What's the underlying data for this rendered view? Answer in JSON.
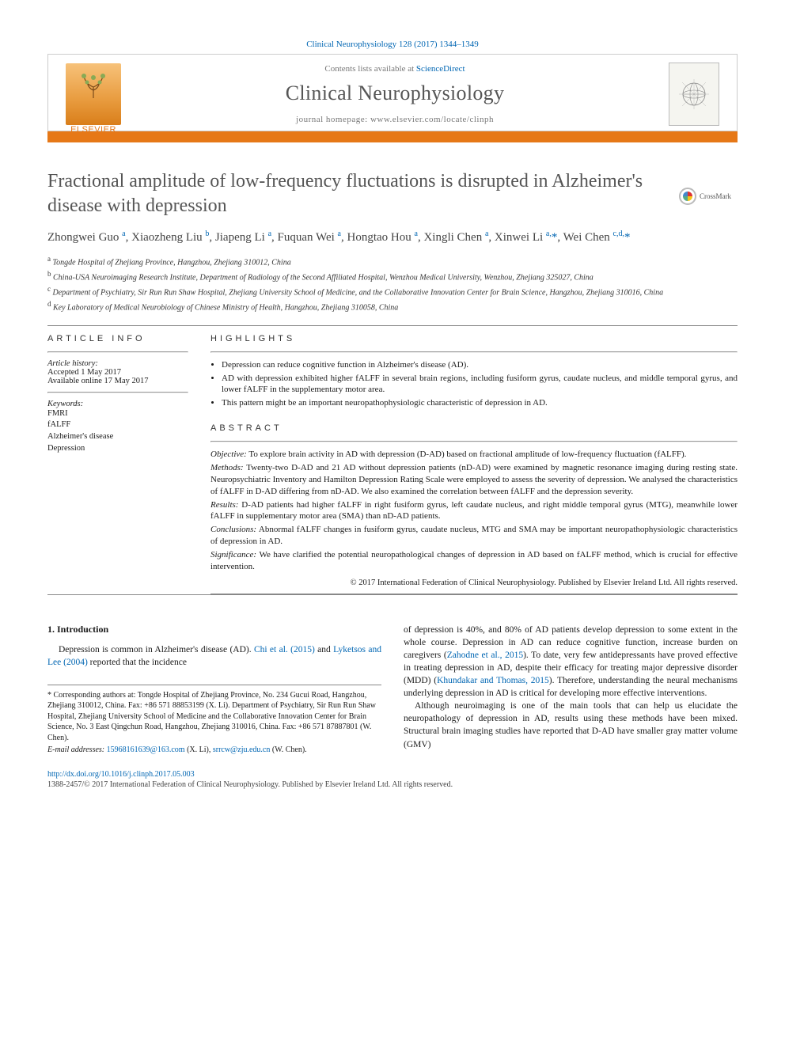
{
  "journal": {
    "ref_line": "Clinical Neurophysiology 128 (2017) 1344–1349",
    "contents_line_pre": "Contents lists available at ",
    "contents_line_link": "ScienceDirect",
    "name": "Clinical Neurophysiology",
    "homepage_pre": "journal homepage: ",
    "homepage_url": "www.elsevier.com/locate/clinph",
    "publisher_logo_label": "ELSEVIER",
    "accent_color": "#e67817",
    "link_color": "#0066b3"
  },
  "crossmark_label": "CrossMark",
  "article": {
    "title": "Fractional amplitude of low-frequency fluctuations is disrupted in Alzheimer's disease with depression",
    "authors_html": "Zhongwei Guo <sup>a</sup>, Xiaozheng Liu <sup>b</sup>, Jiapeng Li <sup>a</sup>, Fuquan Wei <sup>a</sup>, Hongtao Hou <sup>a</sup>, Xingli Chen <sup>a</sup>, Xinwei Li <sup>a,</sup><span class='star'>*</span>, Wei Chen <sup>c,d,</sup><span class='star'>*</span>",
    "affiliations": [
      {
        "sup": "a",
        "text": "Tongde Hospital of Zhejiang Province, Hangzhou, Zhejiang 310012, China"
      },
      {
        "sup": "b",
        "text": "China-USA Neuroimaging Research Institute, Department of Radiology of the Second Affiliated Hospital, Wenzhou Medical University, Wenzhou, Zhejiang 325027, China"
      },
      {
        "sup": "c",
        "text": "Department of Psychiatry, Sir Run Run Shaw Hospital, Zhejiang University School of Medicine, and the Collaborative Innovation Center for Brain Science, Hangzhou, Zhejiang 310016, China"
      },
      {
        "sup": "d",
        "text": "Key Laboratory of Medical Neurobiology of Chinese Ministry of Health, Hangzhou, Zhejiang 310058, China"
      }
    ]
  },
  "info": {
    "heading": "ARTICLE INFO",
    "history_label": "Article history:",
    "accepted": "Accepted 1 May 2017",
    "online": "Available online 17 May 2017",
    "keywords_label": "Keywords:",
    "keywords": [
      "FMRI",
      "fALFF",
      "Alzheimer's disease",
      "Depression"
    ]
  },
  "highlights": {
    "heading": "HIGHLIGHTS",
    "items": [
      "Depression can reduce cognitive function in Alzheimer's disease (AD).",
      "AD with depression exhibited higher fALFF in several brain regions, including fusiform gyrus, caudate nucleus, and middle temporal gyrus, and lower fALFF in the supplementary motor area.",
      "This pattern might be an important neuropathophysiologic characteristic of depression in AD."
    ]
  },
  "abstract": {
    "heading": "ABSTRACT",
    "objective_lbl": "Objective:",
    "objective": " To explore brain activity in AD with depression (D-AD) based on fractional amplitude of low-frequency fluctuation (fALFF).",
    "methods_lbl": "Methods:",
    "methods": " Twenty-two D-AD and 21 AD without depression patients (nD-AD) were examined by magnetic resonance imaging during resting state. Neuropsychiatric Inventory and Hamilton Depression Rating Scale were employed to assess the severity of depression. We analysed the characteristics of fALFF in D-AD differing from nD-AD. We also examined the correlation between fALFF and the depression severity.",
    "results_lbl": "Results:",
    "results": " D-AD patients had higher fALFF in right fusiform gyrus, left caudate nucleus, and right middle temporal gyrus (MTG), meanwhile lower fALFF in supplementary motor area (SMA) than nD-AD patients.",
    "conclusions_lbl": "Conclusions:",
    "conclusions": " Abnormal fALFF changes in fusiform gyrus, caudate nucleus, MTG and SMA may be important neuropathophysiologic characteristics of depression in AD.",
    "significance_lbl": "Significance:",
    "significance": " We have clarified the potential neuropathological changes of depression in AD based on fALFF method, which is crucial for effective intervention.",
    "copyright": "© 2017 International Federation of Clinical Neurophysiology. Published by Elsevier Ireland Ltd. All rights reserved."
  },
  "body": {
    "intro_heading": "1. Introduction",
    "col1_p1_pre": "Depression is common in Alzheimer's disease (AD). ",
    "col1_p1_link1": "Chi et al. (2015)",
    "col1_p1_mid": " and ",
    "col1_p1_link2": "Lyketsos and Lee (2004)",
    "col1_p1_post": " reported that the incidence",
    "col2_p1_pre": "of depression is 40%, and 80% of AD patients develop depression to some extent in the whole course. Depression in AD can reduce cognitive function, increase burden on caregivers (",
    "col2_p1_link1": "Zahodne et al., 2015",
    "col2_p1_mid": "). To date, very few antidepressants have proved effective in treating depression in AD, despite their efficacy for treating major depressive disorder (MDD) (",
    "col2_p1_link2": "Khundakar and Thomas, 2015",
    "col2_p1_post": "). Therefore, understanding the neural mechanisms underlying depression in AD is critical for developing more effective interventions.",
    "col2_p2": "Although neuroimaging is one of the main tools that can help us elucidate the neuropathology of depression in AD, results using these methods have been mixed. Structural brain imaging studies have reported that D-AD have smaller gray matter volume (GMV)"
  },
  "footnotes": {
    "corr_label": "* Corresponding authors at: ",
    "corr_text": "Tongde Hospital of Zhejiang Province, No. 234 Gucui Road, Hangzhou, Zhejiang 310012, China. Fax: +86 571 88853199 (X. Li). Department of Psychiatry, Sir Run Run Shaw Hospital, Zhejiang University School of Medicine and the Collaborative Innovation Center for Brain Science, No. 3 East Qingchun Road, Hangzhou, Zhejiang 310016, China. Fax: +86 571 87887801 (W. Chen).",
    "email_label": "E-mail addresses: ",
    "email1": "15968161639@163.com",
    "email1_who": " (X. Li), ",
    "email2": "srrcw@zju.edu.cn",
    "email2_who": " (W. Chen)."
  },
  "footer": {
    "doi": "http://dx.doi.org/10.1016/j.clinph.2017.05.003",
    "issn_line": "1388-2457/© 2017 International Federation of Clinical Neurophysiology. Published by Elsevier Ireland Ltd. All rights reserved."
  }
}
